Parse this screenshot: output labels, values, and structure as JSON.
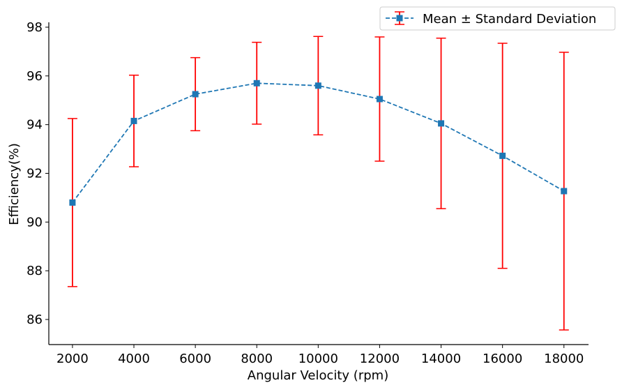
{
  "chart_data": {
    "type": "line",
    "title": "",
    "xlabel": "Angular Velocity (rpm)",
    "ylabel": "Efficiency(%)",
    "x_ticks": [
      2000,
      4000,
      6000,
      8000,
      10000,
      12000,
      14000,
      16000,
      18000
    ],
    "y_ticks": [
      86,
      88,
      90,
      92,
      94,
      96,
      98
    ],
    "xlim": [
      1230,
      18800
    ],
    "ylim": [
      84.97,
      98.2
    ],
    "grid": false,
    "legend_position": "top-right",
    "series": [
      {
        "name": "Mean ± Standard Deviation",
        "line_style": "dashed",
        "marker": "square",
        "color": "#1f77b4",
        "error_color": "#ff0000",
        "x": [
          2000,
          4000,
          6000,
          8000,
          10000,
          12000,
          14000,
          16000,
          18000
        ],
        "y": [
          90.8,
          94.15,
          95.25,
          95.7,
          95.6,
          95.05,
          94.05,
          92.72,
          91.27
        ],
        "yerr": [
          3.45,
          1.88,
          1.5,
          1.68,
          2.02,
          2.55,
          3.5,
          4.62,
          5.7
        ]
      }
    ]
  }
}
